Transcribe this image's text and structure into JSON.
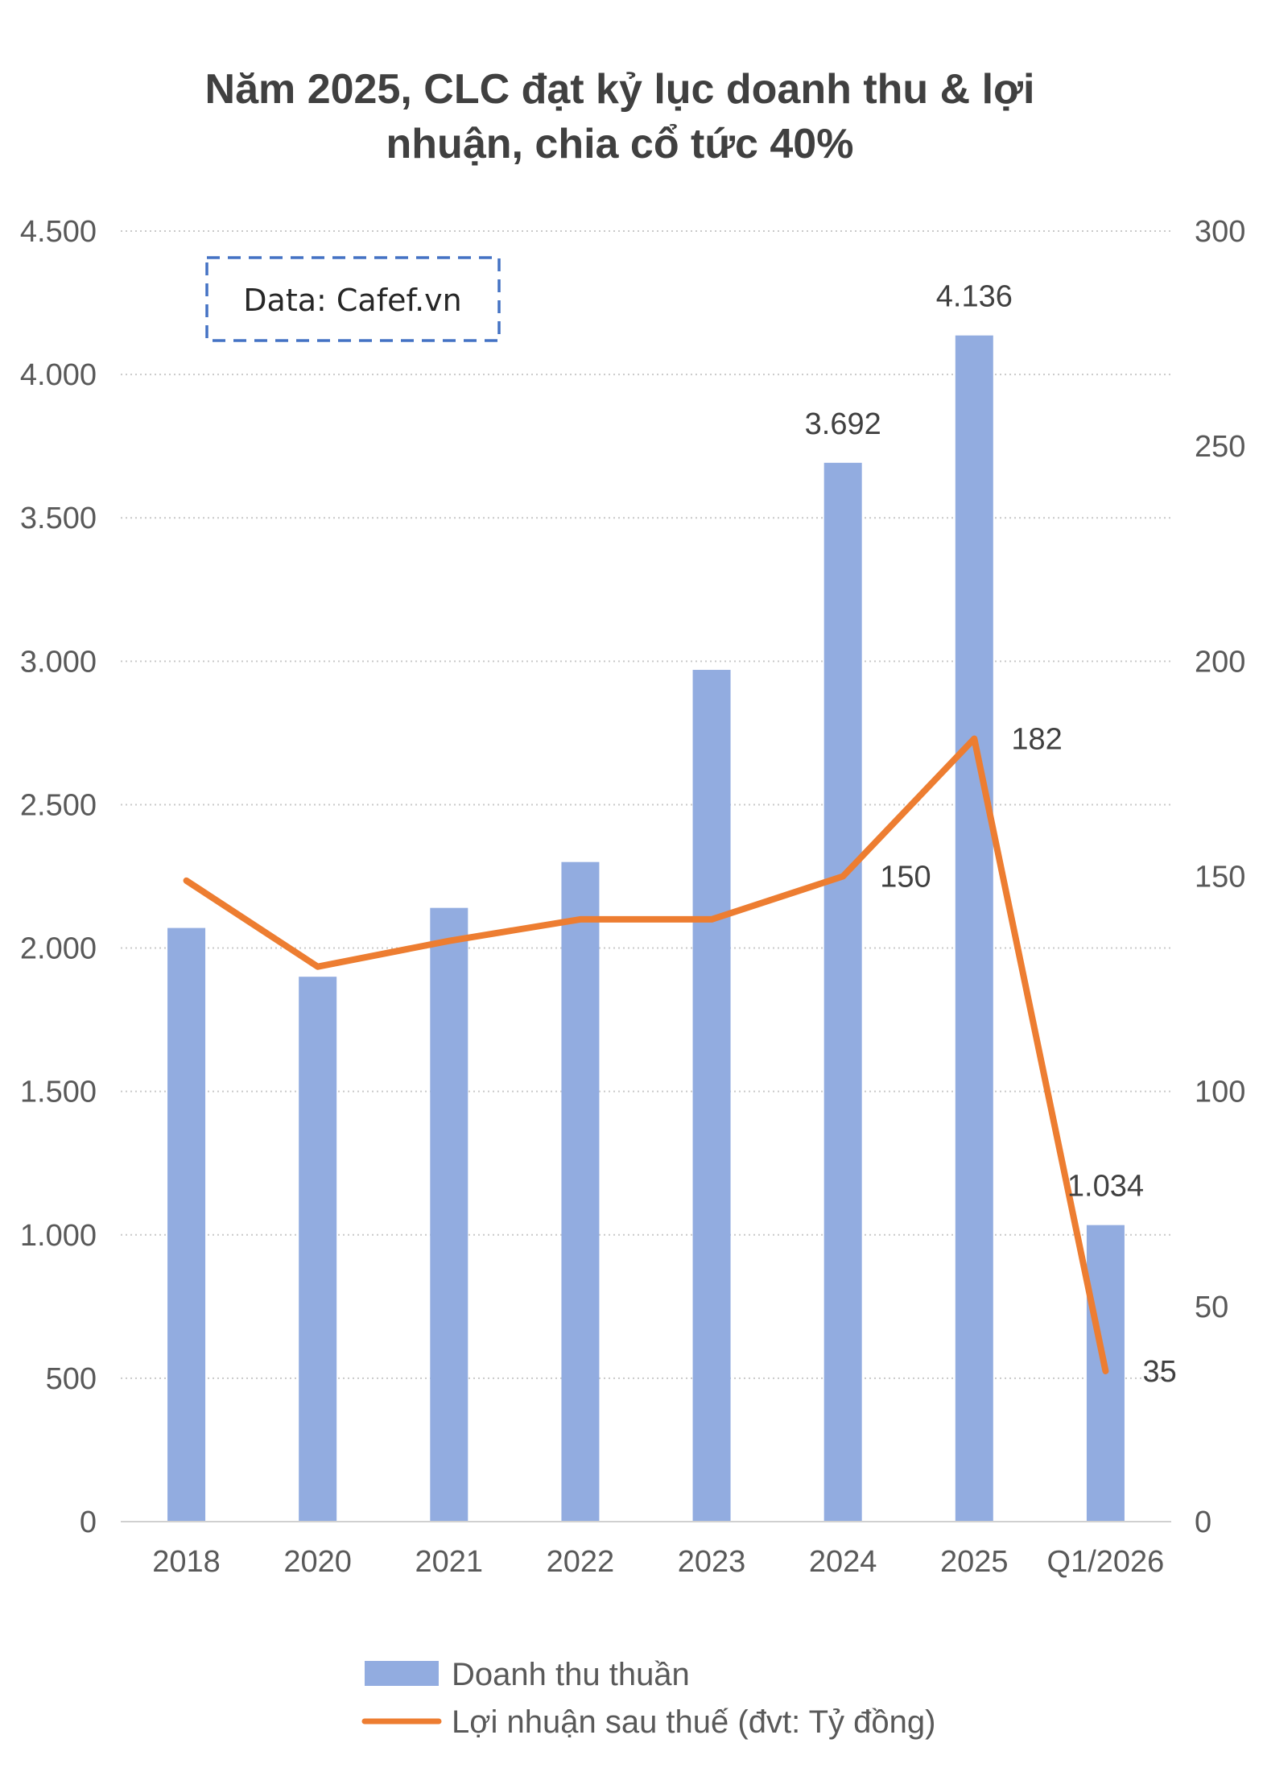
{
  "chart_data": {
    "type": "bar",
    "title_lines": [
      "Năm 2025, CLC đạt kỷ lục doanh thu & lợi",
      "nhuận, chia cổ tức 40%"
    ],
    "source_note": "Data: Cafef.vn",
    "categories": [
      "2018",
      "2020",
      "2021",
      "2022",
      "2023",
      "2024",
      "2025",
      "Q1/2026"
    ],
    "series": [
      {
        "name": "Doanh thu thuần",
        "type": "bar",
        "axis": "left",
        "color": "#92ACE0",
        "values": [
          2070,
          1900,
          2140,
          2300,
          2970,
          3692,
          4136,
          1034
        ],
        "data_labels": [
          "",
          "",
          "",
          "",
          "",
          "3.692",
          "4.136",
          "1.034"
        ]
      },
      {
        "name": "Lợi nhuận sau thuế (đvt: Tỷ đồng)",
        "type": "line",
        "axis": "right",
        "color": "#ED7D31",
        "values": [
          149,
          129,
          135,
          140,
          140,
          150,
          182,
          35
        ],
        "data_labels": [
          "",
          "",
          "",
          "",
          "",
          "150",
          "182",
          "35"
        ]
      }
    ],
    "y_left": {
      "min": 0,
      "max": 4500,
      "ticks": [
        0,
        500,
        1000,
        1500,
        2000,
        2500,
        3000,
        3500,
        4000,
        4500
      ],
      "tick_labels": [
        "0",
        "500",
        "1.000",
        "1.500",
        "2.000",
        "2.500",
        "3.000",
        "3.500",
        "4.000",
        "4.500"
      ]
    },
    "y_right": {
      "min": 0,
      "max": 300,
      "ticks": [
        0,
        50,
        100,
        150,
        200,
        250,
        300
      ],
      "tick_labels": [
        "0",
        "50",
        "100",
        "150",
        "200",
        "250",
        "300"
      ]
    },
    "grid": true,
    "legend_position": "bottom"
  }
}
